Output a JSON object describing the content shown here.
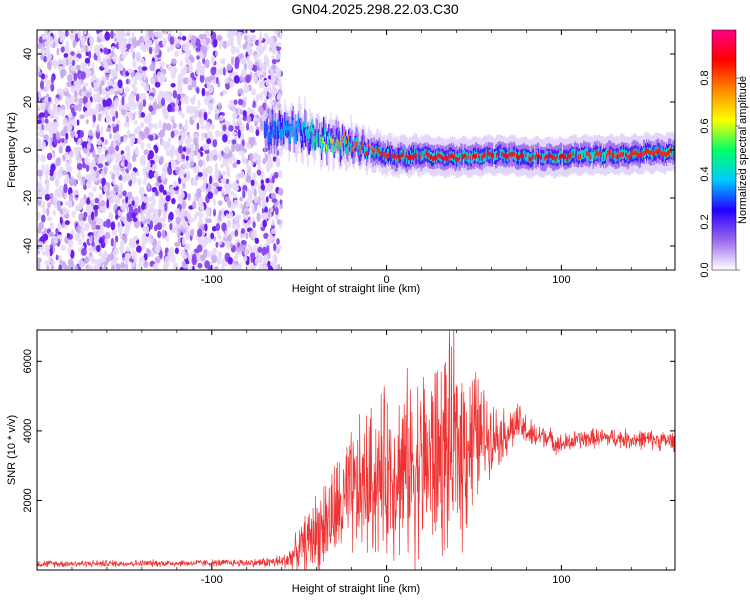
{
  "title": "GN04.2025.298.22.03.C30",
  "chart_data": [
    {
      "type": "heatmap",
      "name": "spectrogram",
      "xlabel": "Height of straight line (km)",
      "ylabel": "Frequency (Hz)",
      "xlim": [
        -200,
        165
      ],
      "ylim": [
        -50,
        50
      ],
      "xticks": [
        -100,
        0,
        100
      ],
      "yticks": [
        -40,
        -20,
        0,
        20,
        40
      ],
      "colorbar": {
        "label": "Normalized spectral amplitude",
        "range": [
          0,
          1
        ],
        "ticks": [
          "0.0",
          "0.2",
          "0.4",
          "0.6",
          "0.8"
        ],
        "tick_values": [
          0.0,
          0.2,
          0.4,
          0.6,
          0.8
        ],
        "colors": [
          "#ffffff",
          "#9966ee",
          "#2200ff",
          "#00ccff",
          "#00ff66",
          "#ffff00",
          "#ff8800",
          "#ff0000",
          "#ff0088"
        ]
      },
      "noise_region_x": [
        -200,
        -63
      ],
      "ridge": {
        "x": [
          -70,
          -60,
          -50,
          -40,
          -30,
          -20,
          -10,
          0,
          10,
          20,
          30,
          40,
          50,
          60,
          70,
          80,
          90,
          100,
          110,
          120,
          130,
          140,
          150,
          165
        ],
        "y": [
          7,
          9,
          8,
          5,
          4,
          2,
          0,
          -2,
          -3,
          -2,
          -3,
          -3,
          -3,
          -2,
          -2,
          -3,
          -3,
          -3,
          -2,
          -2,
          -2,
          -2,
          -1,
          -1
        ],
        "peak_amplitude": [
          0.3,
          0.35,
          0.35,
          0.5,
          0.7,
          0.8,
          0.85,
          0.85,
          0.9,
          0.9,
          0.9,
          0.9,
          0.9,
          0.9,
          0.9,
          0.9,
          0.9,
          0.9,
          0.85,
          0.85,
          0.85,
          0.85,
          0.85,
          0.85
        ]
      }
    },
    {
      "type": "line",
      "name": "snr",
      "xlabel": "Height of straight line (km)",
      "ylabel": "SNR (10 * v/v)",
      "xlim": [
        -200,
        165
      ],
      "ylim": [
        0,
        6900
      ],
      "xticks": [
        -100,
        0,
        100
      ],
      "yticks": [
        2000,
        4000,
        6000
      ],
      "color": "#ee3333",
      "series": [
        {
          "name": "SNR",
          "x": [
            -200,
            -150,
            -100,
            -75,
            -60,
            -55,
            -50,
            -45,
            -40,
            -35,
            -30,
            -25,
            -20,
            -15,
            -10,
            -5,
            0,
            5,
            10,
            15,
            20,
            25,
            30,
            35,
            40,
            45,
            50,
            55,
            60,
            65,
            70,
            75,
            80,
            85,
            90,
            95,
            100,
            110,
            120,
            130,
            140,
            150,
            165
          ],
          "y": [
            180,
            190,
            200,
            210,
            240,
            350,
            600,
            850,
            1100,
            1350,
            1600,
            1850,
            2100,
            2300,
            2500,
            2650,
            2800,
            2900,
            2950,
            3000,
            3050,
            3200,
            3300,
            3450,
            3550,
            3700,
            3800,
            3850,
            3900,
            3850,
            4000,
            4200,
            4000,
            3800,
            3900,
            3700,
            3600,
            3750,
            3800,
            3800,
            3750,
            3750,
            3700
          ],
          "amplitude": [
            100,
            100,
            100,
            120,
            200,
            350,
            600,
            900,
            1200,
            1400,
            1500,
            1700,
            1900,
            2100,
            2200,
            2300,
            2400,
            2500,
            2600,
            2700,
            2800,
            2900,
            3000,
            3100,
            3100,
            2800,
            2200,
            1500,
            1000,
            800,
            700,
            600,
            500,
            400,
            350,
            300,
            300,
            280,
            280,
            280,
            280,
            280,
            280
          ]
        }
      ]
    }
  ]
}
